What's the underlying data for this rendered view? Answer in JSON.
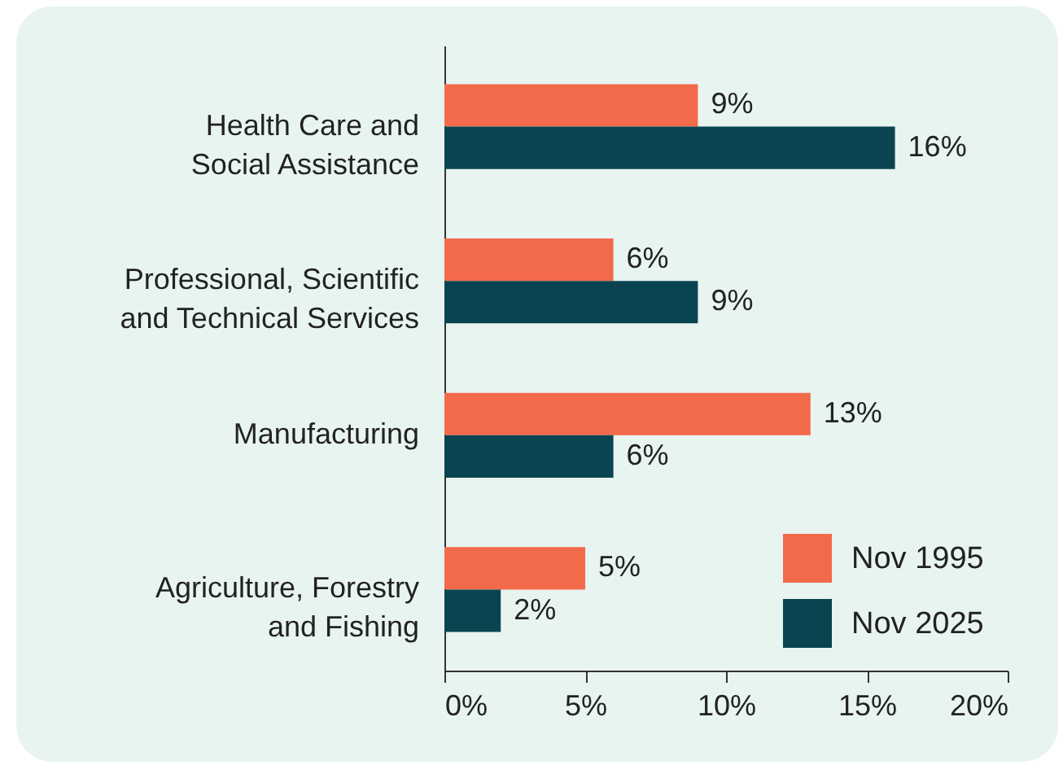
{
  "chart_data": {
    "type": "bar",
    "orientation": "horizontal",
    "categories": [
      "Health Care and\nSocial Assistance",
      "Professional, Scientific\nand Technical Services",
      "Manufacturing",
      "Agriculture, Forestry\nand Fishing"
    ],
    "series": [
      {
        "name": "Nov 1995",
        "color": "#f26a4a",
        "values": [
          9,
          6,
          13,
          5
        ],
        "value_labels": [
          "9%",
          "6%",
          "13%",
          "5%"
        ]
      },
      {
        "name": "Nov 2025",
        "color": "#0b4451",
        "values": [
          16,
          9,
          6,
          2
        ],
        "value_labels": [
          "16%",
          "9%",
          "6%",
          "2%"
        ]
      }
    ],
    "xlim": [
      0,
      20
    ],
    "xticks": [
      {
        "value": 0,
        "label": "0%"
      },
      {
        "value": 5,
        "label": "5%"
      },
      {
        "value": 10,
        "label": "10%"
      },
      {
        "value": 15,
        "label": "15%"
      },
      {
        "value": 20,
        "label": "20%"
      }
    ],
    "legend": "bottom right",
    "grid": false
  }
}
